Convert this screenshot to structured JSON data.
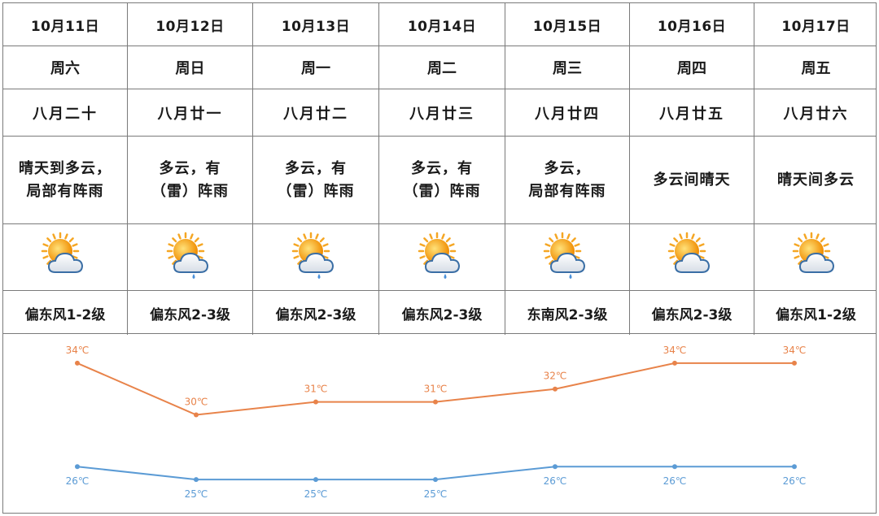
{
  "days": [
    {
      "date": "10月11日",
      "weekday": "周六",
      "lunar": "八月二十",
      "desc": "晴天到多云，\n局部有阵雨",
      "icon": "sun-cloud-icon",
      "wind": "偏东风1-2级"
    },
    {
      "date": "10月12日",
      "weekday": "周日",
      "lunar": "八月廿一",
      "desc": "多云，有\n（雷）阵雨",
      "icon": "sun-cloud-rain-icon",
      "wind": "偏东风2-3级"
    },
    {
      "date": "10月13日",
      "weekday": "周一",
      "lunar": "八月廿二",
      "desc": "多云，有\n（雷）阵雨",
      "icon": "sun-cloud-rain-icon",
      "wind": "偏东风2-3级"
    },
    {
      "date": "10月14日",
      "weekday": "周二",
      "lunar": "八月廿三",
      "desc": "多云，有\n（雷）阵雨",
      "icon": "sun-cloud-rain-icon",
      "wind": "偏东风2-3级"
    },
    {
      "date": "10月15日",
      "weekday": "周三",
      "lunar": "八月廿四",
      "desc": "多云，\n局部有阵雨",
      "icon": "sun-cloud-rain-icon",
      "wind": "东南风2-3级"
    },
    {
      "date": "10月16日",
      "weekday": "周四",
      "lunar": "八月廿五",
      "desc": "多云间晴天",
      "icon": "sun-cloud-icon",
      "wind": "偏东风2-3级"
    },
    {
      "date": "10月17日",
      "weekday": "周五",
      "lunar": "八月廿六",
      "desc": "晴天间多云",
      "icon": "sun-cloud-icon",
      "wind": "偏东风1-2级"
    }
  ],
  "chart_data": {
    "type": "line",
    "series": [
      {
        "values": [
          34,
          30,
          31,
          31,
          32,
          34,
          34
        ],
        "labels": [
          "34℃",
          "30℃",
          "31℃",
          "31℃",
          "32℃",
          "34℃",
          "34℃"
        ],
        "color": "#e8834a"
      },
      {
        "values": [
          26,
          25,
          25,
          25,
          26,
          26,
          26
        ],
        "labels": [
          "26℃",
          "25℃",
          "25℃",
          "25℃",
          "26℃",
          "26℃",
          "26℃"
        ],
        "color": "#5b9bd5"
      }
    ],
    "ylim": [
      24,
      35
    ],
    "grid": false
  },
  "colors": {
    "high": "#e8834a",
    "low": "#5b9bd5",
    "border": "#7a7a7a",
    "sun": "#f5a623",
    "cloud": "#ffffff"
  }
}
